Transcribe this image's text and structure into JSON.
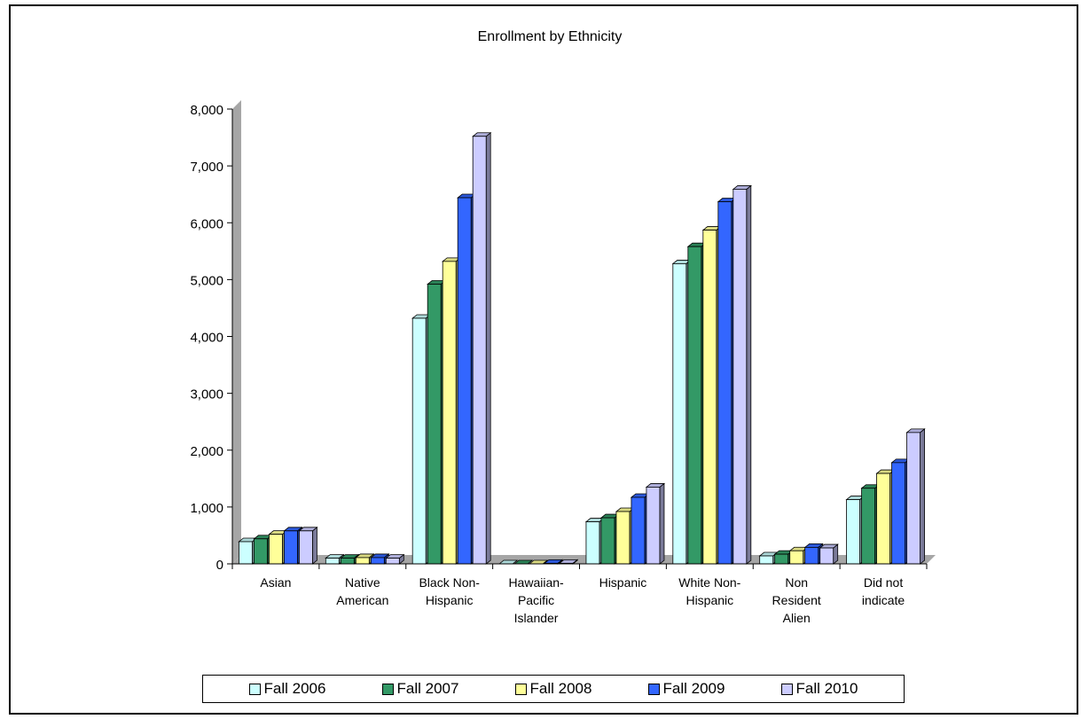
{
  "chart_data": {
    "type": "bar",
    "title": "Enrollment by Ethnicity",
    "categories": [
      [
        "Asian"
      ],
      [
        "Native",
        "American"
      ],
      [
        "Black Non-",
        "Hispanic"
      ],
      [
        "Hawaiian-",
        "Pacific",
        "Islander"
      ],
      [
        "Hispanic"
      ],
      [
        "White Non-",
        "Hispanic"
      ],
      [
        "Non",
        "Resident",
        "Alien"
      ],
      [
        "Did not",
        "indicate"
      ]
    ],
    "series": [
      {
        "name": "Fall 2006",
        "color": "#ccffff",
        "values": [
          390,
          100,
          4320,
          0,
          740,
          5280,
          140,
          1130
        ]
      },
      {
        "name": "Fall 2007",
        "color": "#339966",
        "values": [
          440,
          100,
          4920,
          0,
          810,
          5580,
          170,
          1330
        ]
      },
      {
        "name": "Fall 2008",
        "color": "#ffff99",
        "values": [
          520,
          110,
          5320,
          0,
          920,
          5870,
          230,
          1590
        ]
      },
      {
        "name": "Fall 2009",
        "color": "#3366ff",
        "values": [
          580,
          110,
          6440,
          10,
          1170,
          6370,
          290,
          1780
        ]
      },
      {
        "name": "Fall 2010",
        "color": "#ccccff",
        "values": [
          580,
          100,
          7520,
          10,
          1350,
          6590,
          280,
          2310
        ]
      }
    ],
    "yticks": [
      "0",
      "1,000",
      "2,000",
      "3,000",
      "4,000",
      "5,000",
      "6,000",
      "7,000",
      "8,000"
    ],
    "ylim": [
      0,
      8000
    ],
    "legend_position": "bottom",
    "grid": false
  }
}
